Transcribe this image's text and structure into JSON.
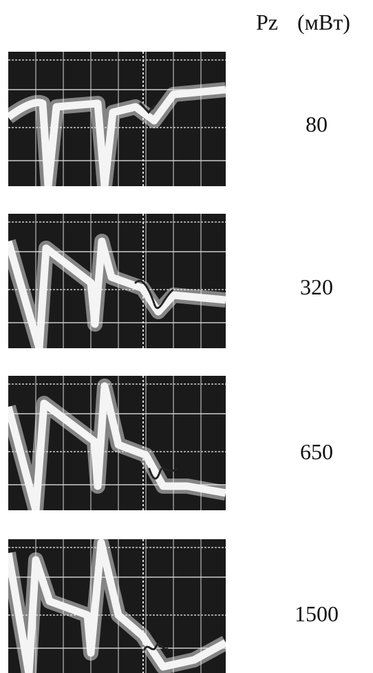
{
  "header": {
    "label": "Pz",
    "unit": "(мВт)"
  },
  "panels": [
    {
      "label": "80"
    },
    {
      "label": "320"
    },
    {
      "label": "650"
    },
    {
      "label": "1500"
    }
  ]
}
